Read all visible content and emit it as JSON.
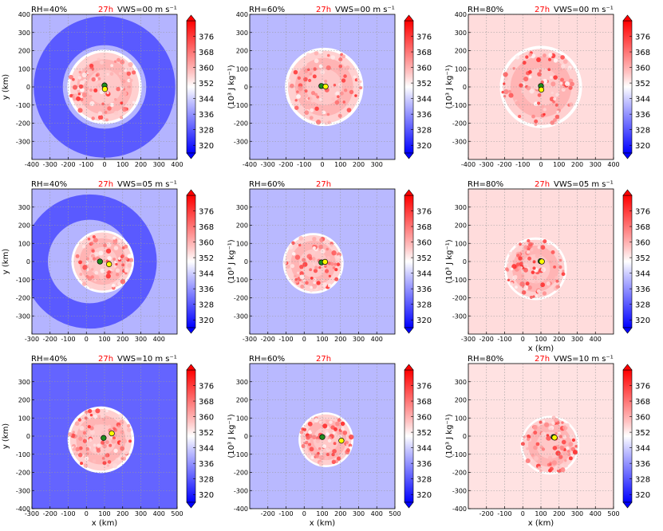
{
  "colorbar": {
    "label": "(10³ J kg⁻¹)",
    "ticks": [
      320,
      328,
      336,
      344,
      352,
      360,
      368,
      376
    ],
    "vmin": 316,
    "vmax": 384
  },
  "xlabel": "x (km)",
  "ylabel": "y (km)",
  "time_label": "27h",
  "chart_data": [
    {
      "type": "heatmap",
      "row": 0,
      "col": 0,
      "rh_label": "RH=40%",
      "vws_label": "VWS=00",
      "vws_unit": "m s⁻¹",
      "xlim": [
        -400,
        400
      ],
      "ylim": [
        -400,
        400
      ],
      "xticks": [
        -400,
        -300,
        -200,
        -100,
        0,
        100,
        200,
        300,
        400
      ],
      "yticks": [
        -300,
        -200,
        -100,
        0,
        100,
        200,
        300,
        400
      ],
      "xlabel": "",
      "ylabel": "y (km)",
      "background": "#b4b4ff",
      "ring_outer": 390,
      "ring_inner": 230,
      "ring_color": "#5a5aff",
      "core_radius": 190,
      "core_cx": 0,
      "core_cy": 0,
      "centers": [
        {
          "x": 0,
          "y": 8,
          "color": "#1e8c1e"
        },
        {
          "x": 2,
          "y": -12,
          "color": "#ffff00"
        }
      ]
    },
    {
      "type": "heatmap",
      "row": 0,
      "col": 1,
      "rh_label": "RH=60%",
      "vws_label": "VWS=00",
      "vws_unit": "m s⁻¹",
      "xlim": [
        -400,
        400
      ],
      "ylim": [
        -400,
        400
      ],
      "xticks": [
        -400,
        -300,
        -200,
        -100,
        0,
        100,
        200,
        300
      ],
      "yticks": [
        -300,
        -200,
        -100,
        0,
        100,
        200,
        300,
        400
      ],
      "xlabel": "",
      "ylabel": "",
      "background": "#b9b9ff",
      "ring_outer": 0,
      "ring_inner": 0,
      "ring_color": "",
      "core_radius": 200,
      "core_cx": 10,
      "core_cy": 0,
      "centers": [
        {
          "x": -5,
          "y": 5,
          "color": "#1e8c1e"
        },
        {
          "x": 18,
          "y": 2,
          "color": "#ffff00"
        }
      ]
    },
    {
      "type": "heatmap",
      "row": 0,
      "col": 2,
      "rh_label": "RH=80%",
      "vws_label": "VWS=00",
      "vws_unit": "m s⁻¹",
      "xlim": [
        -400,
        400
      ],
      "ylim": [
        -400,
        400
      ],
      "xticks": [
        -400,
        -300,
        -200,
        -100,
        0,
        100,
        200,
        300,
        400
      ],
      "yticks": [
        -300,
        -200,
        -100,
        0,
        100,
        200,
        300,
        400
      ],
      "xlabel": "",
      "ylabel": "",
      "background": "#ffdcdc",
      "ring_outer": 0,
      "ring_inner": 0,
      "ring_color": "",
      "core_radius": 210,
      "core_cx": 0,
      "core_cy": 0,
      "centers": [
        {
          "x": 0,
          "y": 5,
          "color": "#1e8c1e"
        },
        {
          "x": 2,
          "y": -15,
          "color": "#ffff00"
        }
      ]
    },
    {
      "type": "heatmap",
      "row": 1,
      "col": 0,
      "rh_label": "RH=40%",
      "vws_label": "VWS=05",
      "vws_unit": "m s⁻¹",
      "xlim": [
        -300,
        500
      ],
      "ylim": [
        -400,
        400
      ],
      "xticks": [
        -300,
        -200,
        -100,
        0,
        100,
        200,
        300,
        400
      ],
      "yticks": [
        -300,
        -200,
        -100,
        0,
        100,
        200,
        300
      ],
      "xlabel": "",
      "ylabel": "y (km)",
      "background": "#b4b4ff",
      "ring_outer": 370,
      "ring_inner": 230,
      "ring_color": "#5a5aff",
      "core_radius": 160,
      "core_cx": 90,
      "core_cy": 0,
      "centers": [
        {
          "x": 75,
          "y": 0,
          "color": "#1e8c1e"
        },
        {
          "x": 125,
          "y": -15,
          "color": "#ffff00"
        }
      ]
    },
    {
      "type": "heatmap",
      "row": 1,
      "col": 1,
      "rh_label": "RH=60%",
      "vws_label": "",
      "vws_unit": "",
      "xlim": [
        -300,
        500
      ],
      "ylim": [
        -400,
        400
      ],
      "xticks": [
        -300,
        -200,
        -100,
        0,
        100,
        200,
        300,
        400
      ],
      "yticks": [
        -300,
        -200,
        -100,
        0,
        100,
        200,
        300
      ],
      "xlabel": "",
      "ylabel": "",
      "background": "#b9b9ff",
      "ring_outer": 0,
      "ring_inner": 0,
      "ring_color": "",
      "core_radius": 155,
      "core_cx": 50,
      "core_cy": -10,
      "centers": [
        {
          "x": 95,
          "y": -5,
          "color": "#1e8c1e"
        },
        {
          "x": 115,
          "y": -2,
          "color": "#ffff00"
        }
      ]
    },
    {
      "type": "heatmap",
      "row": 1,
      "col": 2,
      "rh_label": "RH=80%",
      "vws_label": "VWS=05",
      "vws_unit": "m s⁻¹",
      "xlim": [
        -300,
        500
      ],
      "ylim": [
        -400,
        400
      ],
      "xticks": [
        -300,
        -200,
        -100,
        0,
        100,
        200,
        300,
        400
      ],
      "yticks": [
        -300,
        -200,
        -100,
        0,
        100,
        200,
        300
      ],
      "xlabel": "x (km)",
      "ylabel": "",
      "background": "#ffdcdc",
      "ring_outer": 0,
      "ring_inner": 0,
      "ring_color": "",
      "core_radius": 160,
      "core_cx": 70,
      "core_cy": -40,
      "centers": [
        {
          "x": 98,
          "y": 2,
          "color": "#1e8c1e"
        },
        {
          "x": 105,
          "y": 0,
          "color": "#ffff00"
        }
      ]
    },
    {
      "type": "heatmap",
      "row": 2,
      "col": 0,
      "rh_label": "RH=40%",
      "vws_label": "VWS=10",
      "vws_unit": "m s⁻¹",
      "xlim": [
        -300,
        500
      ],
      "ylim": [
        -400,
        400
      ],
      "xticks": [
        -300,
        -200,
        -100,
        0,
        100,
        200,
        300,
        400,
        500
      ],
      "yticks": [
        -400,
        -300,
        -200,
        -100,
        0,
        100,
        200,
        300
      ],
      "xlabel": "x (km)",
      "ylabel": "y (km)",
      "background": "#6464ff",
      "ring_outer": 0,
      "ring_inner": 0,
      "ring_color": "",
      "core_radius": 170,
      "core_cx": 80,
      "core_cy": -20,
      "centers": [
        {
          "x": 95,
          "y": -10,
          "color": "#1e8c1e"
        },
        {
          "x": 140,
          "y": 15,
          "color": "#ffff00"
        }
      ]
    },
    {
      "type": "heatmap",
      "row": 2,
      "col": 1,
      "rh_label": "RH=60%",
      "vws_label": "",
      "vws_unit": "",
      "xlim": [
        -300,
        500
      ],
      "ylim": [
        -400,
        400
      ],
      "xticks": [
        -200,
        -100,
        0,
        100,
        200,
        300,
        400,
        500
      ],
      "yticks": [
        -400,
        -300,
        -200,
        -100,
        0,
        100,
        200,
        300
      ],
      "xlabel": "x (km)",
      "ylabel": "",
      "background": "#b9b9ff",
      "ring_outer": 0,
      "ring_inner": 0,
      "ring_color": "",
      "core_radius": 140,
      "core_cx": 120,
      "core_cy": -20,
      "centers": [
        {
          "x": 100,
          "y": -5,
          "color": "#1e8c1e"
        },
        {
          "x": 205,
          "y": -25,
          "color": "#ffff00"
        }
      ]
    },
    {
      "type": "heatmap",
      "row": 2,
      "col": 2,
      "rh_label": "RH=80%",
      "vws_label": "VWS=10",
      "vws_unit": "m s⁻¹",
      "xlim": [
        -300,
        500
      ],
      "ylim": [
        -400,
        400
      ],
      "xticks": [
        -200,
        -100,
        0,
        100,
        200,
        300,
        400,
        500
      ],
      "yticks": [
        -400,
        -300,
        -200,
        -100,
        0,
        100,
        200,
        300
      ],
      "xlabel": "x (km)",
      "ylabel": "",
      "background": "#ffe2e2",
      "ring_outer": 0,
      "ring_inner": 0,
      "ring_color": "",
      "core_radius": 150,
      "core_cx": 150,
      "core_cy": -50,
      "centers": [
        {
          "x": 170,
          "y": -5,
          "color": "#1e8c1e"
        },
        {
          "x": 175,
          "y": -8,
          "color": "#ffff00"
        }
      ]
    }
  ]
}
